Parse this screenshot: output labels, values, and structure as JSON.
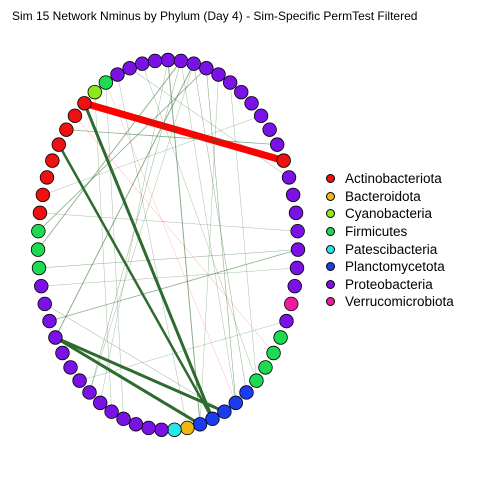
{
  "title": "Sim 15 Network Nminus by Phylum (Day 4) - Sim-Specific PermTest Filtered",
  "legend": [
    {
      "label": "Actinobacteriota",
      "color": "#ee1111"
    },
    {
      "label": "Bacteroidota",
      "color": "#f2b511"
    },
    {
      "label": "Cyanobacteria",
      "color": "#8ee81a"
    },
    {
      "label": "Firmicutes",
      "color": "#1ed952"
    },
    {
      "label": "Patescibacteria",
      "color": "#27e8e8"
    },
    {
      "label": "Planctomycetota",
      "color": "#1b3cf0"
    },
    {
      "label": "Proteobacteria",
      "color": "#7a12e6"
    },
    {
      "label": "Verrucomicrobiota",
      "color": "#f01aa0"
    }
  ],
  "nodes": [
    {
      "phylum": "Proteobacteria"
    },
    {
      "phylum": "Proteobacteria"
    },
    {
      "phylum": "Proteobacteria"
    },
    {
      "phylum": "Proteobacteria"
    },
    {
      "phylum": "Proteobacteria"
    },
    {
      "phylum": "Proteobacteria"
    },
    {
      "phylum": "Proteobacteria"
    },
    {
      "phylum": "Proteobacteria"
    },
    {
      "phylum": "Proteobacteria"
    },
    {
      "phylum": "Proteobacteria"
    },
    {
      "phylum": "Proteobacteria"
    },
    {
      "phylum": "Actinobacteriota"
    },
    {
      "phylum": "Proteobacteria"
    },
    {
      "phylum": "Proteobacteria"
    },
    {
      "phylum": "Proteobacteria"
    },
    {
      "phylum": "Proteobacteria"
    },
    {
      "phylum": "Proteobacteria"
    },
    {
      "phylum": "Proteobacteria"
    },
    {
      "phylum": "Proteobacteria"
    },
    {
      "phylum": "Verrucomicrobiota"
    },
    {
      "phylum": "Proteobacteria"
    },
    {
      "phylum": "Firmicutes"
    },
    {
      "phylum": "Firmicutes"
    },
    {
      "phylum": "Firmicutes"
    },
    {
      "phylum": "Firmicutes"
    },
    {
      "phylum": "Planctomycetota"
    },
    {
      "phylum": "Planctomycetota"
    },
    {
      "phylum": "Planctomycetota"
    },
    {
      "phylum": "Planctomycetota"
    },
    {
      "phylum": "Planctomycetota"
    },
    {
      "phylum": "Bacteroidota"
    },
    {
      "phylum": "Patescibacteria"
    },
    {
      "phylum": "Proteobacteria"
    },
    {
      "phylum": "Proteobacteria"
    },
    {
      "phylum": "Proteobacteria"
    },
    {
      "phylum": "Proteobacteria"
    },
    {
      "phylum": "Proteobacteria"
    },
    {
      "phylum": "Proteobacteria"
    },
    {
      "phylum": "Proteobacteria"
    },
    {
      "phylum": "Proteobacteria"
    },
    {
      "phylum": "Proteobacteria"
    },
    {
      "phylum": "Proteobacteria"
    },
    {
      "phylum": "Proteobacteria"
    },
    {
      "phylum": "Proteobacteria"
    },
    {
      "phylum": "Proteobacteria"
    },
    {
      "phylum": "Proteobacteria"
    },
    {
      "phylum": "Firmicutes"
    },
    {
      "phylum": "Firmicutes"
    },
    {
      "phylum": "Firmicutes"
    },
    {
      "phylum": "Actinobacteriota"
    },
    {
      "phylum": "Actinobacteriota"
    },
    {
      "phylum": "Actinobacteriota"
    },
    {
      "phylum": "Actinobacteriota"
    },
    {
      "phylum": "Actinobacteriota"
    },
    {
      "phylum": "Actinobacteriota"
    },
    {
      "phylum": "Actinobacteriota"
    },
    {
      "phylum": "Actinobacteriota"
    },
    {
      "phylum": "Cyanobacteria"
    },
    {
      "phylum": "Firmicutes"
    },
    {
      "phylum": "Proteobacteria"
    },
    {
      "phylum": "Proteobacteria"
    },
    {
      "phylum": "Proteobacteria"
    },
    {
      "phylum": "Proteobacteria"
    }
  ],
  "edges": [
    {
      "from": 56,
      "to": 11,
      "weight": 7,
      "sign": "negative"
    },
    {
      "from": 56,
      "to": 28,
      "weight": 3,
      "sign": "positive"
    },
    {
      "from": 42,
      "to": 29,
      "weight": 3,
      "sign": "positive"
    },
    {
      "from": 42,
      "to": 27,
      "weight": 3,
      "sign": "positive"
    },
    {
      "from": 53,
      "to": 28,
      "weight": 2.5,
      "sign": "positive"
    },
    {
      "from": 42,
      "to": 2,
      "weight": 1,
      "sign": "positive"
    },
    {
      "from": 0,
      "to": 29,
      "weight": 1,
      "sign": "positive"
    },
    {
      "from": 47,
      "to": 1,
      "weight": 0.9,
      "sign": "positive"
    },
    {
      "from": 48,
      "to": 3,
      "weight": 0.8,
      "sign": "positive"
    },
    {
      "from": 54,
      "to": 10,
      "weight": 0.8,
      "sign": "positive"
    },
    {
      "from": 43,
      "to": 16,
      "weight": 0.8,
      "sign": "positive"
    },
    {
      "from": 46,
      "to": 16,
      "weight": 0.5,
      "sign": "positive"
    },
    {
      "from": 3,
      "to": 26,
      "weight": 0.6,
      "sign": "positive"
    },
    {
      "from": 2,
      "to": 25,
      "weight": 0.5,
      "sign": "positive"
    },
    {
      "from": 4,
      "to": 29,
      "weight": 0.4,
      "sign": "positive"
    },
    {
      "from": 1,
      "to": 38,
      "weight": 0.5,
      "sign": "positive"
    },
    {
      "from": 0,
      "to": 37,
      "weight": 0.4,
      "sign": "positive"
    },
    {
      "from": 60,
      "to": 12,
      "weight": 0.5,
      "sign": "positive"
    },
    {
      "from": 61,
      "to": 24,
      "weight": 0.4,
      "sign": "positive"
    },
    {
      "from": 57,
      "to": 36,
      "weight": 0.4,
      "sign": "positive"
    },
    {
      "from": 58,
      "to": 35,
      "weight": 0.4,
      "sign": "positive"
    },
    {
      "from": 55,
      "to": 22,
      "weight": 0.5,
      "sign": "negative"
    },
    {
      "from": 58,
      "to": 26,
      "weight": 0.4,
      "sign": "negative"
    },
    {
      "from": 49,
      "to": 15,
      "weight": 0.4,
      "sign": "positive"
    },
    {
      "from": 45,
      "to": 17,
      "weight": 0.4,
      "sign": "positive"
    },
    {
      "from": 44,
      "to": 27,
      "weight": 0.5,
      "sign": "positive"
    },
    {
      "from": 50,
      "to": 8,
      "weight": 0.4,
      "sign": "positive"
    },
    {
      "from": 5,
      "to": 24,
      "weight": 0.4,
      "sign": "positive"
    },
    {
      "from": 39,
      "to": 20,
      "weight": 0.4,
      "sign": "positive"
    },
    {
      "from": 2,
      "to": 38,
      "weight": 0.4,
      "sign": "positive"
    },
    {
      "from": 1,
      "to": 26,
      "weight": 0.4,
      "sign": "positive"
    },
    {
      "from": 59,
      "to": 30,
      "weight": 0.4,
      "sign": "positive"
    }
  ]
}
